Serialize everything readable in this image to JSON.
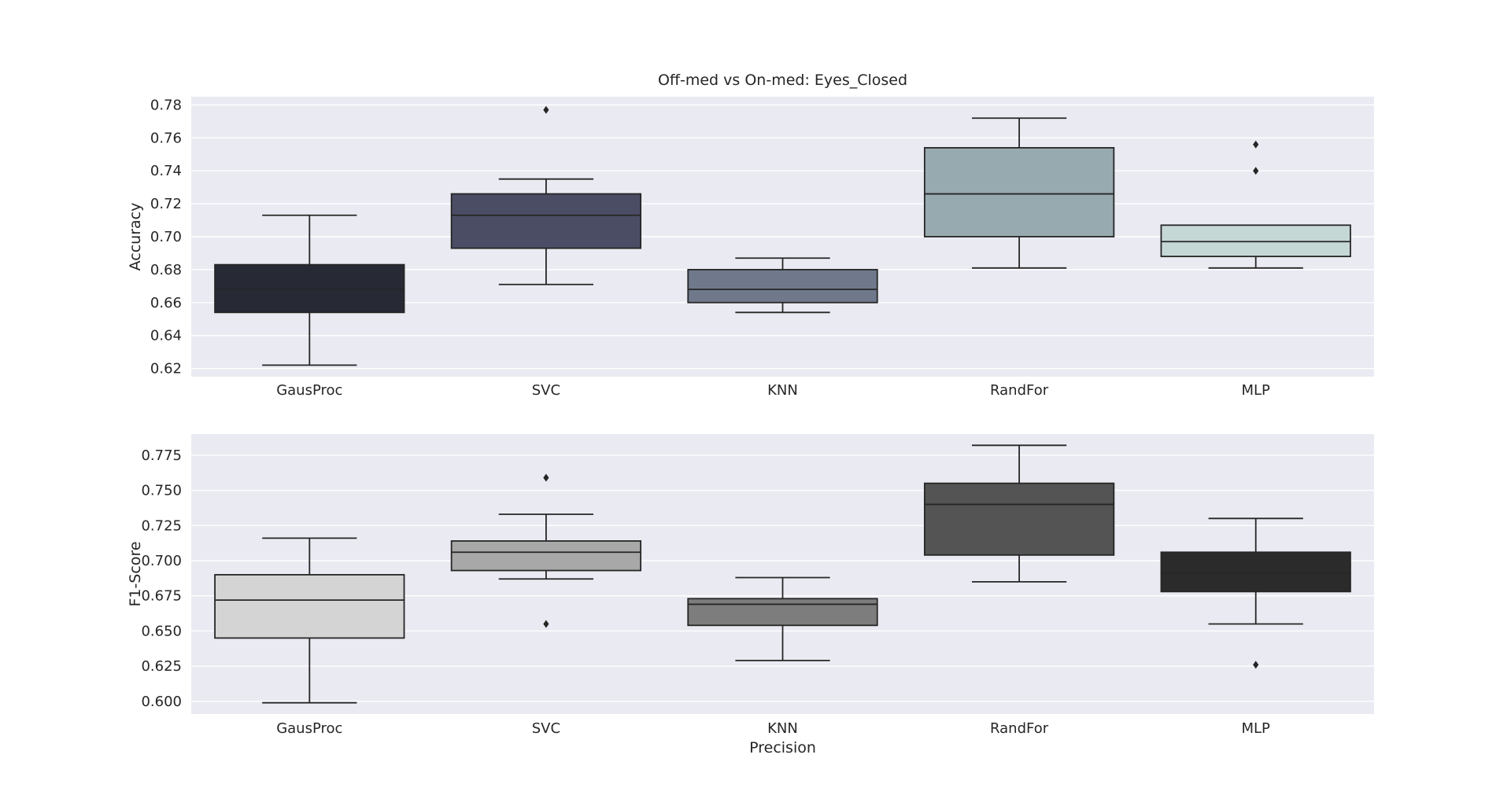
{
  "chart_data": [
    {
      "type": "box",
      "title": "Off-med vs On-med: Eyes_Closed",
      "xlabel": "",
      "ylabel": "Accuracy",
      "ylim": [
        0.615,
        0.785
      ],
      "yticks": [
        0.62,
        0.64,
        0.66,
        0.68,
        0.7,
        0.72,
        0.74,
        0.76,
        0.78
      ],
      "ytick_labels": [
        "0.62",
        "0.64",
        "0.66",
        "0.68",
        "0.70",
        "0.72",
        "0.74",
        "0.76",
        "0.78"
      ],
      "grid": true,
      "categories": [
        "GausProc",
        "SVC",
        "KNN",
        "RandFor",
        "MLP"
      ],
      "colors": [
        "#272934",
        "#4b4d65",
        "#6f798b",
        "#97aab0",
        "#c5d8d6"
      ],
      "boxes": [
        {
          "whisker_low": 0.622,
          "q1": 0.654,
          "median": 0.668,
          "q3": 0.683,
          "whisker_high": 0.713,
          "outliers": []
        },
        {
          "whisker_low": 0.671,
          "q1": 0.693,
          "median": 0.713,
          "q3": 0.726,
          "whisker_high": 0.735,
          "outliers": [
            0.777
          ]
        },
        {
          "whisker_low": 0.654,
          "q1": 0.66,
          "median": 0.668,
          "q3": 0.68,
          "whisker_high": 0.687,
          "outliers": []
        },
        {
          "whisker_low": 0.681,
          "q1": 0.7,
          "median": 0.726,
          "q3": 0.754,
          "whisker_high": 0.772,
          "outliers": []
        },
        {
          "whisker_low": 0.681,
          "q1": 0.688,
          "median": 0.697,
          "q3": 0.707,
          "whisker_high": 0.707,
          "outliers": [
            0.74,
            0.756
          ]
        }
      ]
    },
    {
      "type": "box",
      "title": "",
      "xlabel": "Precision",
      "ylabel": "F1-Score",
      "ylim": [
        0.591,
        0.79
      ],
      "yticks": [
        0.6,
        0.625,
        0.65,
        0.675,
        0.7,
        0.725,
        0.75,
        0.775
      ],
      "ytick_labels": [
        "0.600",
        "0.625",
        "0.650",
        "0.675",
        "0.700",
        "0.725",
        "0.750",
        "0.775"
      ],
      "grid": true,
      "categories": [
        "GausProc",
        "SVC",
        "KNN",
        "RandFor",
        "MLP"
      ],
      "colors": [
        "#d4d4d4",
        "#a8a8a8",
        "#7d7d7d",
        "#545454",
        "#2b2b2b"
      ],
      "boxes": [
        {
          "whisker_low": 0.599,
          "q1": 0.645,
          "median": 0.672,
          "q3": 0.69,
          "whisker_high": 0.716,
          "outliers": []
        },
        {
          "whisker_low": 0.687,
          "q1": 0.693,
          "median": 0.706,
          "q3": 0.714,
          "whisker_high": 0.733,
          "outliers": [
            0.655,
            0.759
          ]
        },
        {
          "whisker_low": 0.629,
          "q1": 0.654,
          "median": 0.669,
          "q3": 0.673,
          "whisker_high": 0.688,
          "outliers": []
        },
        {
          "whisker_low": 0.685,
          "q1": 0.704,
          "median": 0.74,
          "q3": 0.755,
          "whisker_high": 0.782,
          "outliers": []
        },
        {
          "whisker_low": 0.655,
          "q1": 0.678,
          "median": 0.691,
          "q3": 0.706,
          "whisker_high": 0.73,
          "outliers": [
            0.626
          ]
        }
      ]
    }
  ]
}
